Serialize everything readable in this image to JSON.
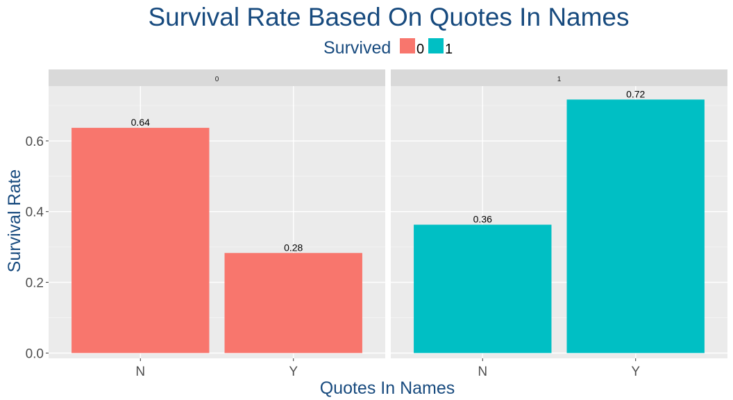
{
  "chart_data": {
    "type": "bar",
    "title": "Survival Rate Based On Quotes In Names",
    "xlabel": "Quotes In Names",
    "ylabel": "Survival Rate",
    "categories": [
      "N",
      "Y"
    ],
    "ylim": [
      -0.015,
      0.755
    ],
    "yticks": [
      0.0,
      0.2,
      0.4,
      0.6
    ],
    "ytick_labels": [
      "0.0",
      "0.2",
      "0.4",
      "0.6"
    ],
    "grid": true,
    "legend": {
      "title": "Survived",
      "placement": "top",
      "entries": [
        {
          "label": "0",
          "color": "#F8766D"
        },
        {
          "label": "1",
          "color": "#00BFC4"
        }
      ]
    },
    "facets": [
      {
        "label": "0",
        "color": "#F8766D",
        "values": [
          0.637,
          0.283
        ],
        "value_labels": [
          "0.64",
          "0.28"
        ]
      },
      {
        "label": "1",
        "color": "#00BFC4",
        "values": [
          0.363,
          0.717
        ],
        "value_labels": [
          "0.36",
          "0.72"
        ]
      }
    ]
  },
  "colors": {
    "title": "#174A7E",
    "panel_bg": "#EBEBEB",
    "strip_bg": "#D9D9D9",
    "grid": "#FFFFFF",
    "tick_text": "#4D4D4D"
  }
}
